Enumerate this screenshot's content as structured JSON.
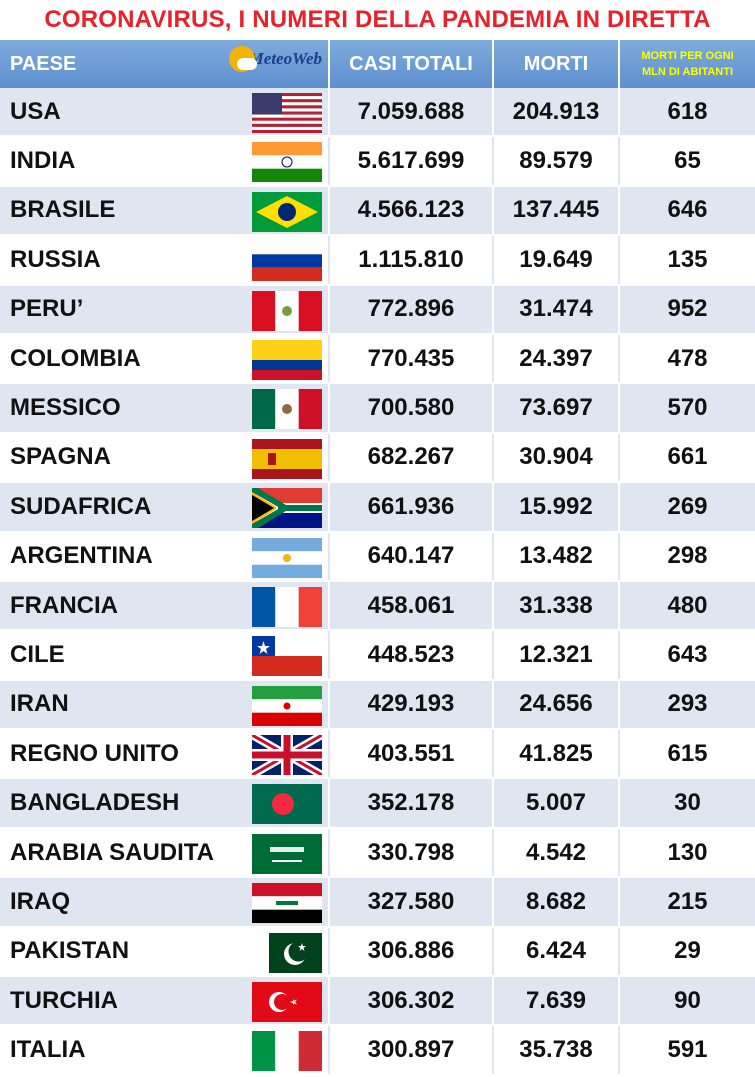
{
  "title": "CORONAVIRUS, I NUMERI DELLA PANDEMIA IN DIRETTA",
  "header": {
    "country": "PAESE",
    "logo_text": "MeteoWeb",
    "cases": "CASI TOTALI",
    "deaths": "MORTI",
    "per_mln_line1": "MORTI PER OGNI",
    "per_mln_line2": "MLN DI ABITANTI"
  },
  "colors": {
    "title": "#e8212a",
    "header_bg": "#6a9ad4",
    "header_text": "#ffffff",
    "per_mln_header": "#ffff00",
    "row_alt": "#dfe6f2"
  },
  "rows": [
    {
      "country": "USA",
      "cases": "7.059.688",
      "deaths": "204.913",
      "per_mln": "618",
      "flag": "usa-flag-icon"
    },
    {
      "country": "INDIA",
      "cases": "5.617.699",
      "deaths": "89.579",
      "per_mln": "65",
      "flag": "india-flag-icon"
    },
    {
      "country": "BRASILE",
      "cases": "4.566.123",
      "deaths": "137.445",
      "per_mln": "646",
      "flag": "brazil-flag-icon"
    },
    {
      "country": "RUSSIA",
      "cases": "1.115.810",
      "deaths": "19.649",
      "per_mln": "135",
      "flag": "russia-flag-icon"
    },
    {
      "country": "PERU’",
      "cases": "772.896",
      "deaths": "31.474",
      "per_mln": "952",
      "flag": "peru-flag-icon"
    },
    {
      "country": "COLOMBIA",
      "cases": "770.435",
      "deaths": "24.397",
      "per_mln": "478",
      "flag": "colombia-flag-icon"
    },
    {
      "country": "MESSICO",
      "cases": "700.580",
      "deaths": "73.697",
      "per_mln": "570",
      "flag": "mexico-flag-icon"
    },
    {
      "country": "SPAGNA",
      "cases": "682.267",
      "deaths": "30.904",
      "per_mln": "661",
      "flag": "spain-flag-icon"
    },
    {
      "country": "SUDAFRICA",
      "cases": "661.936",
      "deaths": "15.992",
      "per_mln": "269",
      "flag": "south-africa-flag-icon"
    },
    {
      "country": "ARGENTINA",
      "cases": "640.147",
      "deaths": "13.482",
      "per_mln": "298",
      "flag": "argentina-flag-icon"
    },
    {
      "country": "FRANCIA",
      "cases": "458.061",
      "deaths": "31.338",
      "per_mln": "480",
      "flag": "france-flag-icon"
    },
    {
      "country": "CILE",
      "cases": "448.523",
      "deaths": "12.321",
      "per_mln": "643",
      "flag": "chile-flag-icon"
    },
    {
      "country": "IRAN",
      "cases": "429.193",
      "deaths": "24.656",
      "per_mln": "293",
      "flag": "iran-flag-icon"
    },
    {
      "country": "REGNO UNITO",
      "cases": "403.551",
      "deaths": "41.825",
      "per_mln": "615",
      "flag": "uk-flag-icon"
    },
    {
      "country": "BANGLADESH",
      "cases": "352.178",
      "deaths": "5.007",
      "per_mln": "30",
      "flag": "bangladesh-flag-icon"
    },
    {
      "country": "ARABIA SAUDITA",
      "cases": "330.798",
      "deaths": "4.542",
      "per_mln": "130",
      "flag": "saudi-arabia-flag-icon"
    },
    {
      "country": "IRAQ",
      "cases": "327.580",
      "deaths": "8.682",
      "per_mln": "215",
      "flag": "iraq-flag-icon"
    },
    {
      "country": "PAKISTAN",
      "cases": "306.886",
      "deaths": "6.424",
      "per_mln": "29",
      "flag": "pakistan-flag-icon"
    },
    {
      "country": "TURCHIA",
      "cases": "306.302",
      "deaths": "7.639",
      "per_mln": "90",
      "flag": "turkey-flag-icon"
    },
    {
      "country": "ITALIA",
      "cases": "300.897",
      "deaths": "35.738",
      "per_mln": "591",
      "flag": "italy-flag-icon"
    }
  ]
}
